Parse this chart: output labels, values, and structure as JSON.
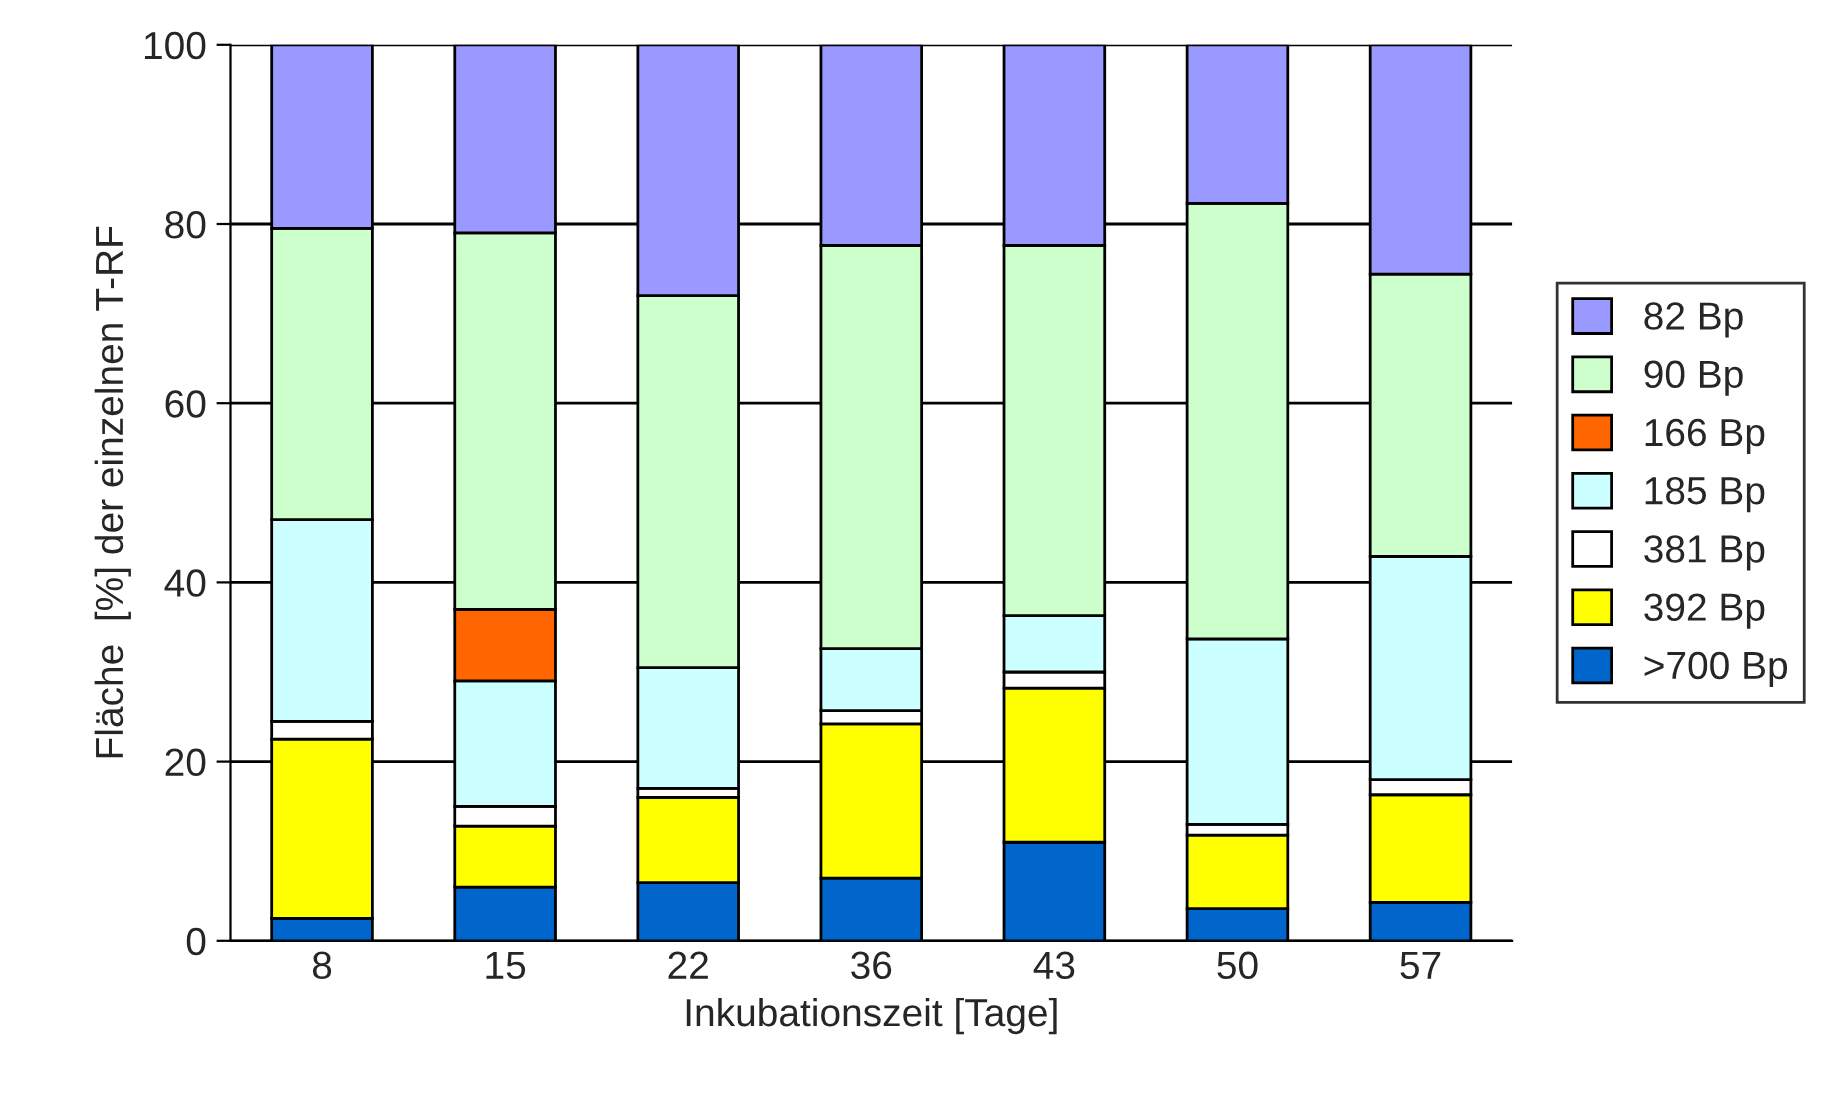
{
  "chart_data": {
    "type": "bar",
    "stacked": true,
    "xlabel": "Inkubationszeit [Tage]",
    "ylabel": "Fläche  [%] der einzelnen T-RF",
    "categories": [
      "8",
      "15",
      "22",
      "36",
      "43",
      "50",
      "57"
    ],
    "series": [
      {
        "name": ">700 Bp",
        "color": "#0066cc",
        "values": [
          2.5,
          6,
          6.5,
          7,
          11,
          3.6,
          4.3
        ]
      },
      {
        "name": "392 Bp",
        "color": "#ffff00",
        "values": [
          20,
          6.8,
          9.5,
          17.2,
          17.2,
          8.2,
          12
        ]
      },
      {
        "name": "381 Bp",
        "color": "#ffffff",
        "values": [
          2,
          2.2,
          1,
          1.5,
          1.8,
          1.2,
          1.7
        ]
      },
      {
        "name": "185 Bp",
        "color": "#ccffff",
        "values": [
          22.5,
          14,
          13.5,
          6.9,
          6.3,
          20.7,
          24.9
        ]
      },
      {
        "name": "166 Bp",
        "color": "#ff6600",
        "values": [
          0,
          8,
          0,
          0,
          0,
          0,
          0
        ]
      },
      {
        "name": "90 Bp",
        "color": "#ccffcc",
        "values": [
          32.5,
          42,
          41.5,
          45,
          41.3,
          48.6,
          31.5
        ]
      },
      {
        "name": "82 Bp",
        "color": "#9999ff",
        "values": [
          20.5,
          21,
          28,
          22.4,
          22.4,
          17.7,
          25.6
        ]
      }
    ],
    "ylim": [
      0,
      100
    ],
    "yticks": [
      0,
      20,
      40,
      60,
      80,
      100
    ],
    "grid": "y",
    "legend": "right"
  }
}
